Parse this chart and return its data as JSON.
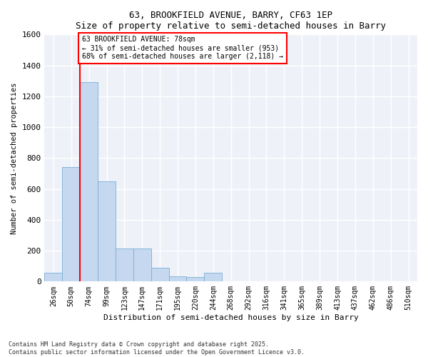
{
  "title_line1": "63, BROOKFIELD AVENUE, BARRY, CF63 1EP",
  "title_line2": "Size of property relative to semi-detached houses in Barry",
  "xlabel": "Distribution of semi-detached houses by size in Barry",
  "ylabel": "Number of semi-detached properties",
  "footnote": "Contains HM Land Registry data © Crown copyright and database right 2025.\nContains public sector information licensed under the Open Government Licence v3.0.",
  "categories": [
    "26sqm",
    "50sqm",
    "74sqm",
    "99sqm",
    "123sqm",
    "147sqm",
    "171sqm",
    "195sqm",
    "220sqm",
    "244sqm",
    "268sqm",
    "292sqm",
    "316sqm",
    "341sqm",
    "365sqm",
    "389sqm",
    "413sqm",
    "437sqm",
    "462sqm",
    "486sqm",
    "510sqm"
  ],
  "values": [
    55,
    740,
    1290,
    650,
    215,
    215,
    90,
    35,
    30,
    55,
    0,
    0,
    0,
    0,
    0,
    0,
    0,
    0,
    0,
    0,
    0
  ],
  "bar_color": "#c5d8ef",
  "bar_edge_color": "#7aafd4",
  "property_line_color": "red",
  "property_line_bar_index": 2,
  "annotation_text": "63 BROOKFIELD AVENUE: 78sqm\n← 31% of semi-detached houses are smaller (953)\n68% of semi-detached houses are larger (2,118) →",
  "annotation_box_edge_color": "red",
  "annotation_text_color": "black",
  "ylim": [
    0,
    1600
  ],
  "yticks": [
    0,
    200,
    400,
    600,
    800,
    1000,
    1200,
    1400,
    1600
  ],
  "background_color": "#eef2f8",
  "grid_color": "white",
  "fig_bg_color": "white"
}
